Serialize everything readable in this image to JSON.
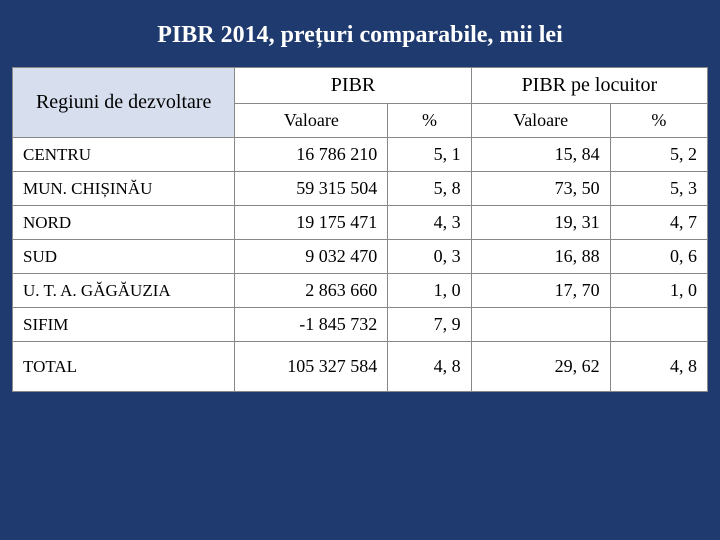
{
  "title": "PIBR 2014, prețuri comparabile, mii lei",
  "table": {
    "type": "table",
    "background_color": "#ffffff",
    "header_region_bg": "#d7dfee",
    "border_color": "#888888",
    "font_family": "Georgia",
    "title_fontsize": 24,
    "header_fontsize": 20,
    "cell_fontsize": 18,
    "columns": {
      "region": "Regiuni de dezvoltare",
      "group1": "PIBR",
      "group2": "PIBR pe locuitor",
      "sub_val": "Valoare",
      "sub_pct": "%"
    },
    "col_widths_pct": [
      32,
      22,
      12,
      20,
      14
    ],
    "rows": [
      {
        "region": "CENTRU",
        "v1": "16 786 210",
        "p1": "5, 1",
        "v2": "15, 84",
        "p2": "5, 2"
      },
      {
        "region": "MUN. CHIȘINĂU",
        "v1": "59 315 504",
        "p1": "5, 8",
        "v2": "73, 50",
        "p2": "5, 3"
      },
      {
        "region": "NORD",
        "v1": "19 175 471",
        "p1": "4, 3",
        "v2": "19, 31",
        "p2": "4, 7"
      },
      {
        "region": "SUD",
        "v1": "9 032 470",
        "p1": "0, 3",
        "v2": "16, 88",
        "p2": "0, 6"
      },
      {
        "region": "U. T. A. GĂGĂUZIA",
        "v1": "2 863 660",
        "p1": "1, 0",
        "v2": "17, 70",
        "p2": "1, 0"
      },
      {
        "region": "SIFIM",
        "v1": "-1 845 732",
        "p1": "7, 9",
        "v2": "",
        "p2": ""
      }
    ],
    "total": {
      "region": "TOTAL",
      "v1": "105 327 584",
      "p1": "4, 8",
      "v2": "29, 62",
      "p2": "4, 8"
    }
  },
  "page_bg": "#1f3a6e"
}
